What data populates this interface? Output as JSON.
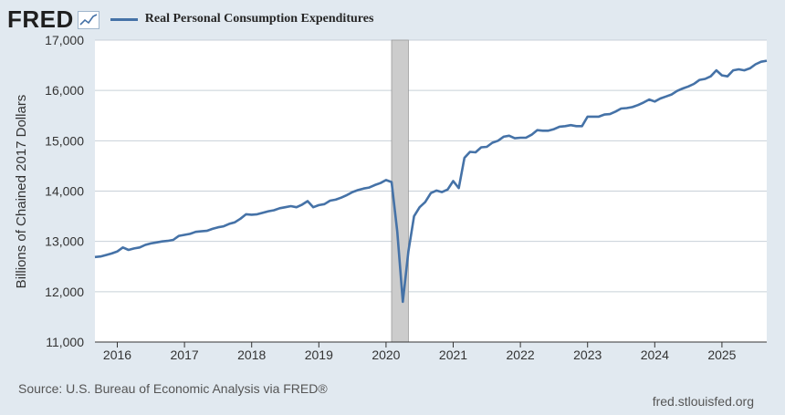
{
  "header": {
    "logo_text": "FRED",
    "logo_icon": "line-chart-icon"
  },
  "colors": {
    "series": "#4572a7",
    "recession": "#cccccc",
    "grid": "#c8d0d8",
    "background": "#e1e9f0",
    "plot_bg": "#ffffff"
  },
  "chart_data": {
    "type": "line",
    "title": "Real Personal Consumption Expenditures",
    "ylabel": "Billions of Chained 2017 Dollars",
    "xlabel": "",
    "ylim": [
      11000,
      17000
    ],
    "xlim": [
      2015.667,
      2025.667
    ],
    "yticks": [
      "11,000",
      "12,000",
      "13,000",
      "14,000",
      "15,000",
      "16,000",
      "17,000"
    ],
    "ytick_values": [
      11000,
      12000,
      13000,
      14000,
      15000,
      16000,
      17000
    ],
    "xticks": [
      "2016",
      "2017",
      "2018",
      "2019",
      "2020",
      "2021",
      "2022",
      "2023",
      "2024",
      "2025"
    ],
    "xtick_values": [
      2016,
      2017,
      2018,
      2019,
      2020,
      2021,
      2022,
      2023,
      2024,
      2025
    ],
    "recession": [
      2020.083,
      2020.333
    ],
    "series": [
      {
        "name": "Real Personal Consumption Expenditures",
        "x": [
          2015.667,
          2015.75,
          2015.833,
          2015.917,
          2016.0,
          2016.083,
          2016.167,
          2016.25,
          2016.333,
          2016.417,
          2016.5,
          2016.583,
          2016.667,
          2016.75,
          2016.833,
          2016.917,
          2017.0,
          2017.083,
          2017.167,
          2017.25,
          2017.333,
          2017.417,
          2017.5,
          2017.583,
          2017.667,
          2017.75,
          2017.833,
          2017.917,
          2018.0,
          2018.083,
          2018.167,
          2018.25,
          2018.333,
          2018.417,
          2018.5,
          2018.583,
          2018.667,
          2018.75,
          2018.833,
          2018.917,
          2019.0,
          2019.083,
          2019.167,
          2019.25,
          2019.333,
          2019.417,
          2019.5,
          2019.583,
          2019.667,
          2019.75,
          2019.833,
          2019.917,
          2020.0,
          2020.083,
          2020.167,
          2020.25,
          2020.333,
          2020.417,
          2020.5,
          2020.583,
          2020.667,
          2020.75,
          2020.833,
          2020.917,
          2021.0,
          2021.083,
          2021.167,
          2021.25,
          2021.333,
          2021.417,
          2021.5,
          2021.583,
          2021.667,
          2021.75,
          2021.833,
          2021.917,
          2022.0,
          2022.083,
          2022.167,
          2022.25,
          2022.333,
          2022.417,
          2022.5,
          2022.583,
          2022.667,
          2022.75,
          2022.833,
          2022.917,
          2023.0,
          2023.083,
          2023.167,
          2023.25,
          2023.333,
          2023.417,
          2023.5,
          2023.583,
          2023.667,
          2023.75,
          2023.833,
          2023.917,
          2024.0,
          2024.083,
          2024.167,
          2024.25,
          2024.333,
          2024.417,
          2024.5,
          2024.583,
          2024.667,
          2024.75,
          2024.833,
          2024.917,
          2025.0,
          2025.083,
          2025.167,
          2025.25,
          2025.333,
          2025.417,
          2025.5,
          2025.583,
          2025.667
        ],
        "values": [
          12690,
          12700,
          12730,
          12760,
          12800,
          12880,
          12830,
          12860,
          12880,
          12930,
          12960,
          12980,
          13000,
          13010,
          13030,
          13110,
          13130,
          13150,
          13190,
          13200,
          13210,
          13250,
          13280,
          13300,
          13350,
          13380,
          13450,
          13540,
          13530,
          13540,
          13570,
          13600,
          13620,
          13660,
          13680,
          13700,
          13680,
          13730,
          13800,
          13680,
          13720,
          13740,
          13810,
          13830,
          13870,
          13920,
          13980,
          14020,
          14050,
          14070,
          14120,
          14160,
          14220,
          14180,
          13200,
          11800,
          12800,
          13500,
          13680,
          13780,
          13960,
          14010,
          13980,
          14030,
          14200,
          14060,
          14660,
          14780,
          14770,
          14870,
          14880,
          14960,
          15000,
          15080,
          15100,
          15050,
          15060,
          15060,
          15120,
          15210,
          15200,
          15200,
          15230,
          15280,
          15290,
          15310,
          15290,
          15290,
          15480,
          15480,
          15480,
          15520,
          15530,
          15580,
          15640,
          15650,
          15670,
          15710,
          15760,
          15820,
          15780,
          15840,
          15880,
          15920,
          15990,
          16040,
          16080,
          16130,
          16210,
          16230,
          16280,
          16400,
          16300,
          16280,
          16400,
          16420,
          16400,
          16440,
          16520,
          16570,
          16590
        ]
      }
    ]
  },
  "footer": {
    "source": "Source: U.S. Bureau of Economic Analysis via FRED®",
    "url": "fred.stlouisfed.org"
  }
}
